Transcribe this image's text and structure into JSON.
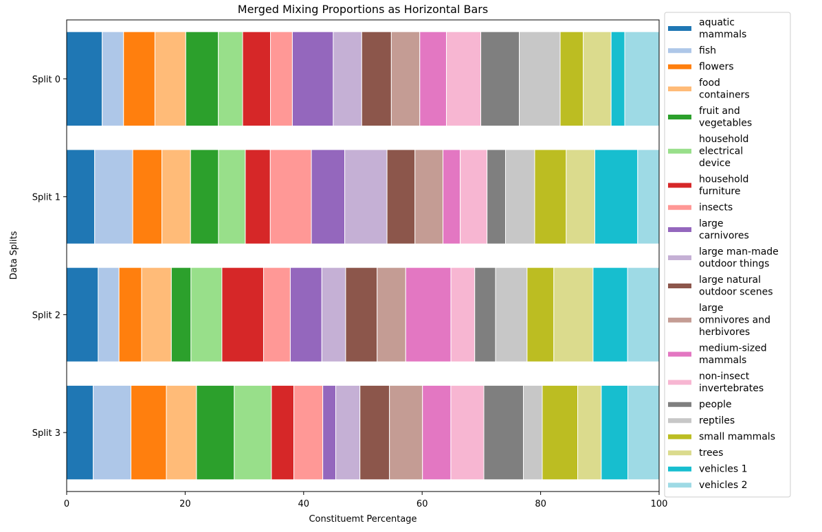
{
  "chart_data": {
    "type": "bar",
    "orientation": "horizontal",
    "stacked": true,
    "title": "Merged Mixing Proportions as Horizontal Bars",
    "xlabel": "Constituemt Percentage",
    "ylabel": "Data Splits",
    "xlim": [
      0,
      100
    ],
    "xticks": [
      "0",
      "20",
      "40",
      "60",
      "80",
      "100"
    ],
    "grid": false,
    "legend_position": "right, outside plot",
    "categories": [
      "Split 0",
      "Split 1",
      "Split 2",
      "Split 3"
    ],
    "series": [
      {
        "name": "aquatic mammals",
        "legend_lines": [
          "aquatic",
          "mammals"
        ],
        "color": "#1f77b4",
        "values": [
          6.0,
          4.7,
          5.3,
          4.5
        ]
      },
      {
        "name": "fish",
        "legend_lines": [
          "fish"
        ],
        "color": "#aec7e8",
        "values": [
          3.6,
          6.4,
          3.5,
          6.4
        ]
      },
      {
        "name": "flowers",
        "legend_lines": [
          "flowers"
        ],
        "color": "#ff7f0e",
        "values": [
          5.3,
          4.9,
          3.8,
          6.0
        ]
      },
      {
        "name": "food containers",
        "legend_lines": [
          "food",
          "containers"
        ],
        "color": "#ffbb78",
        "values": [
          5.2,
          4.8,
          5.0,
          5.1
        ]
      },
      {
        "name": "fruit and vegetables",
        "legend_lines": [
          "fruit and",
          "vegetables"
        ],
        "color": "#2ca02c",
        "values": [
          5.5,
          4.7,
          3.3,
          6.4
        ]
      },
      {
        "name": "household electrical device",
        "legend_lines": [
          "household",
          "electrical",
          "device"
        ],
        "color": "#98df8a",
        "values": [
          4.1,
          4.5,
          5.2,
          6.3
        ]
      },
      {
        "name": "household furniture",
        "legend_lines": [
          "household",
          "furniture"
        ],
        "color": "#d62728",
        "values": [
          4.7,
          4.2,
          7.0,
          3.8
        ]
      },
      {
        "name": "insects",
        "legend_lines": [
          "insects"
        ],
        "color": "#ff9896",
        "values": [
          3.7,
          6.9,
          4.5,
          4.9
        ]
      },
      {
        "name": "large carnivores",
        "legend_lines": [
          "large",
          "carnivores"
        ],
        "color": "#9467bd",
        "values": [
          6.9,
          5.6,
          5.3,
          2.2
        ]
      },
      {
        "name": "large man-made outdoor things",
        "legend_lines": [
          "large man-made",
          "outdoor things"
        ],
        "color": "#c5b0d5",
        "values": [
          4.8,
          7.1,
          4.0,
          4.1
        ]
      },
      {
        "name": "large natural outdoor scenes",
        "legend_lines": [
          "large natural",
          "outdoor scenes"
        ],
        "color": "#8c564b",
        "values": [
          5.0,
          4.7,
          5.3,
          5.0
        ]
      },
      {
        "name": "large omnivores and herbivores",
        "legend_lines": [
          "large",
          "omnivores and",
          "herbivores"
        ],
        "color": "#c49c94",
        "values": [
          4.8,
          4.7,
          4.8,
          5.6
        ]
      },
      {
        "name": "medium-sized mammals",
        "legend_lines": [
          "medium-sized",
          "mammals"
        ],
        "color": "#e377c2",
        "values": [
          4.5,
          2.9,
          7.6,
          4.8
        ]
      },
      {
        "name": "non-insect invertebrates",
        "legend_lines": [
          "non-insect",
          "invertebrates"
        ],
        "color": "#f7b6d2",
        "values": [
          5.8,
          4.5,
          4.0,
          5.6
        ]
      },
      {
        "name": "people",
        "legend_lines": [
          "people"
        ],
        "color": "#7f7f7f",
        "values": [
          6.5,
          3.1,
          3.5,
          6.7
        ]
      },
      {
        "name": "reptiles",
        "legend_lines": [
          "reptiles"
        ],
        "color": "#c7c7c7",
        "values": [
          6.9,
          4.9,
          5.3,
          3.2
        ]
      },
      {
        "name": "small mammals",
        "legend_lines": [
          "small mammals"
        ],
        "color": "#bcbd22",
        "values": [
          3.9,
          5.3,
          4.5,
          6.0
        ]
      },
      {
        "name": "trees",
        "legend_lines": [
          "trees"
        ],
        "color": "#dbdb8d",
        "values": [
          4.7,
          4.8,
          6.6,
          4.0
        ]
      },
      {
        "name": "vehicles 1",
        "legend_lines": [
          "vehicles 1"
        ],
        "color": "#17becf",
        "values": [
          2.3,
          7.2,
          5.8,
          4.5
        ]
      },
      {
        "name": "vehicles 2",
        "legend_lines": [
          "vehicles 2"
        ],
        "color": "#9edae5",
        "values": [
          5.8,
          3.6,
          5.3,
          5.3
        ]
      }
    ]
  }
}
